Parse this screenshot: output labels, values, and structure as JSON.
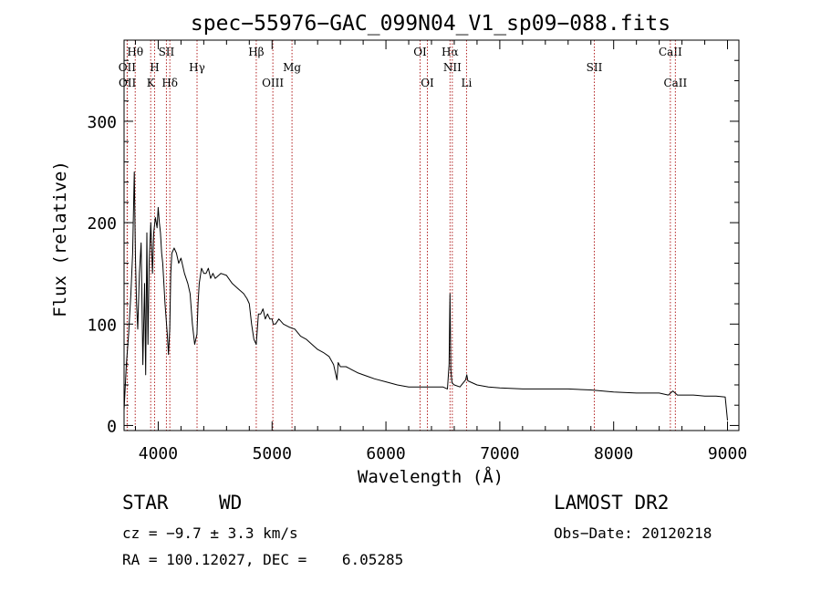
{
  "chart_data": {
    "type": "line",
    "title": "spec−55976−GAC_099N04_V1_sp09−088.fits",
    "xlabel": "Wavelength (Å)",
    "ylabel": "Flux (relative)",
    "xlim": [
      3700,
      9100
    ],
    "ylim": [
      -5,
      380
    ],
    "xticks": [
      4000,
      5000,
      6000,
      7000,
      8000,
      9000
    ],
    "yticks": [
      0,
      100,
      200,
      300
    ],
    "grid": false,
    "series": [
      {
        "name": "flux",
        "x": [
          3700,
          3720,
          3740,
          3760,
          3775,
          3790,
          3800,
          3810,
          3820,
          3835,
          3850,
          3865,
          3880,
          3890,
          3900,
          3910,
          3920,
          3935,
          3950,
          3960,
          3975,
          3990,
          4000,
          4010,
          4020,
          4030,
          4040,
          4060,
          4080,
          4090,
          4101,
          4110,
          4120,
          4140,
          4160,
          4180,
          4200,
          4230,
          4260,
          4280,
          4300,
          4320,
          4340,
          4350,
          4360,
          4380,
          4400,
          4420,
          4440,
          4460,
          4480,
          4500,
          4550,
          4600,
          4650,
          4700,
          4750,
          4780,
          4800,
          4820,
          4840,
          4861,
          4880,
          4900,
          4920,
          4940,
          4960,
          4980,
          5000,
          5010,
          5030,
          5060,
          5100,
          5150,
          5200,
          5250,
          5300,
          5350,
          5400,
          5450,
          5500,
          5540,
          5570,
          5580,
          5600,
          5650,
          5700,
          5750,
          5800,
          5850,
          5900,
          6000,
          6100,
          6200,
          6300,
          6400,
          6500,
          6540,
          6555,
          6563,
          6570,
          6580,
          6600,
          6650,
          6700,
          6710,
          6720,
          6800,
          6900,
          7000,
          7200,
          7400,
          7600,
          7800,
          7900,
          8000,
          8200,
          8400,
          8480,
          8500,
          8520,
          8560,
          8600,
          8700,
          8800,
          8900,
          8980,
          9000
        ],
        "y": [
          15,
          60,
          90,
          130,
          170,
          250,
          165,
          120,
          95,
          150,
          180,
          60,
          140,
          50,
          190,
          80,
          160,
          200,
          150,
          190,
          205,
          195,
          215,
          200,
          190,
          170,
          160,
          120,
          90,
          70,
          95,
          150,
          170,
          175,
          170,
          160,
          165,
          150,
          140,
          130,
          100,
          80,
          90,
          120,
          140,
          155,
          150,
          150,
          155,
          145,
          150,
          145,
          150,
          148,
          140,
          135,
          130,
          125,
          120,
          100,
          85,
          80,
          110,
          110,
          115,
          105,
          110,
          105,
          105,
          100,
          100,
          105,
          100,
          97,
          95,
          88,
          85,
          80,
          75,
          72,
          68,
          60,
          45,
          62,
          58,
          58,
          55,
          52,
          50,
          48,
          46,
          43,
          40,
          38,
          38,
          38,
          38,
          36,
          60,
          130,
          55,
          42,
          40,
          38,
          45,
          50,
          44,
          40,
          38,
          37,
          36,
          36,
          36,
          35,
          34,
          33,
          32,
          32,
          30,
          32,
          34,
          30,
          30,
          30,
          29,
          29,
          28,
          5
        ]
      }
    ],
    "line_markers": [
      {
        "label": "Hθ",
        "wavelength": 3798,
        "row": 1
      },
      {
        "label": "OII",
        "wavelength": 3727,
        "row": 2
      },
      {
        "label": "OII",
        "wavelength": 3729,
        "row": 3
      },
      {
        "label": "SII",
        "wavelength": 4072,
        "row": 1
      },
      {
        "label": "H",
        "wavelength": 3968,
        "row": 2
      },
      {
        "label": "K",
        "wavelength": 3934,
        "row": 3
      },
      {
        "label": "Hδ",
        "wavelength": 4102,
        "row": 3
      },
      {
        "label": "Hγ",
        "wavelength": 4341,
        "row": 2
      },
      {
        "label": "Hβ",
        "wavelength": 4861,
        "row": 1
      },
      {
        "label": "Mg",
        "wavelength": 5175,
        "row": 2
      },
      {
        "label": "OIII",
        "wavelength": 5007,
        "row": 3
      },
      {
        "label": "OI",
        "wavelength": 6300,
        "row": 1
      },
      {
        "label": "OI",
        "wavelength": 6364,
        "row": 3
      },
      {
        "label": "Hα",
        "wavelength": 6563,
        "row": 1
      },
      {
        "label": "NII",
        "wavelength": 6583,
        "row": 2
      },
      {
        "label": "Li",
        "wavelength": 6708,
        "row": 3
      },
      {
        "label": "SII",
        "wavelength": 7830,
        "row": 2
      },
      {
        "label": "CaII",
        "wavelength": 8498,
        "row": 1
      },
      {
        "label": "CaII",
        "wavelength": 8542,
        "row": 3
      }
    ]
  },
  "info": {
    "class_label": "STAR",
    "subclass_label": "WD",
    "survey": "LAMOST DR2",
    "cz": "cz = −9.7 ± 3.3 km/s",
    "obs_date": "Obs−Date: 20120218",
    "coords": "RA = 100.12027, DEC =    6.05285"
  },
  "colors": {
    "marker_line": "#b22222",
    "spectrum": "#000000"
  }
}
